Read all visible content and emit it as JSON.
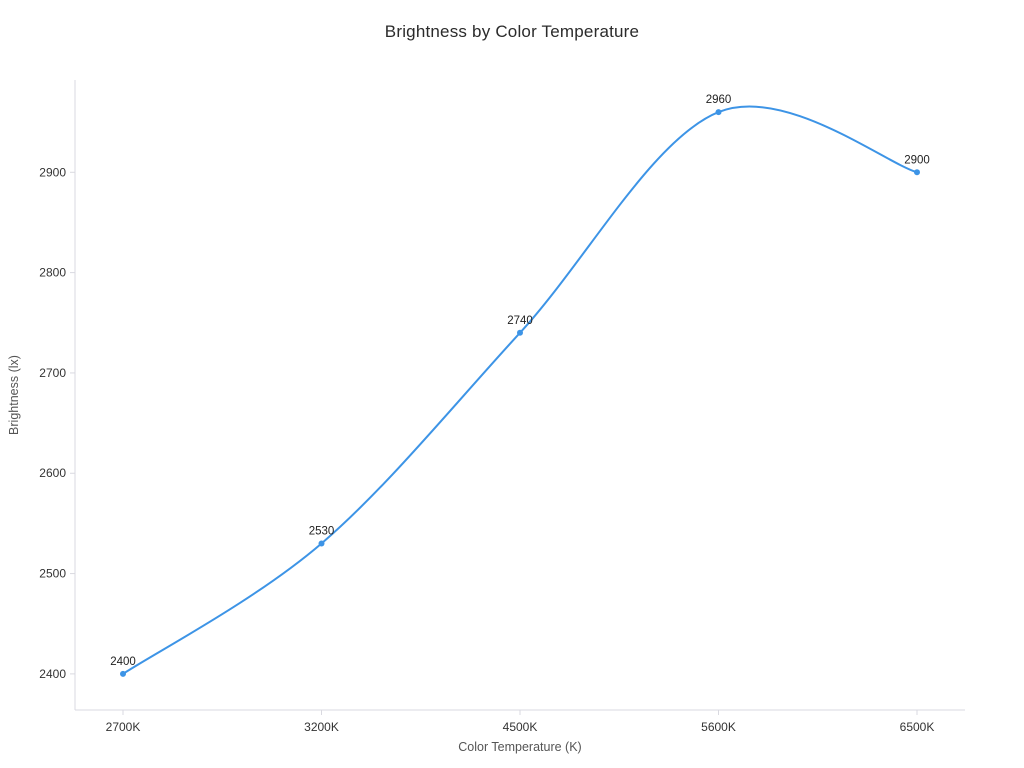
{
  "chart_data": {
    "type": "line",
    "title": "Brightness by Color Temperature",
    "xlabel": "Color Temperature (K)",
    "ylabel": "Brightness (lx)",
    "categories": [
      "2700K",
      "3200K",
      "4500K",
      "5600K",
      "6500K"
    ],
    "values": [
      2400,
      2530,
      2740,
      2960,
      2900
    ],
    "point_labels": [
      "2400",
      "2530",
      "2740",
      "2960",
      "2900"
    ],
    "yticks": [
      2400,
      2500,
      2600,
      2700,
      2800,
      2900
    ],
    "ylim": [
      2364,
      2992
    ],
    "smooth": true,
    "grid": false,
    "legend_position": "none",
    "line_color": "#3d94e6",
    "marker_color": "#3d94e6",
    "axis_color": "#d9d9e0",
    "tick_text_color": "#333333",
    "axis_label_color": "#555555",
    "label_text_color": "#222222"
  }
}
